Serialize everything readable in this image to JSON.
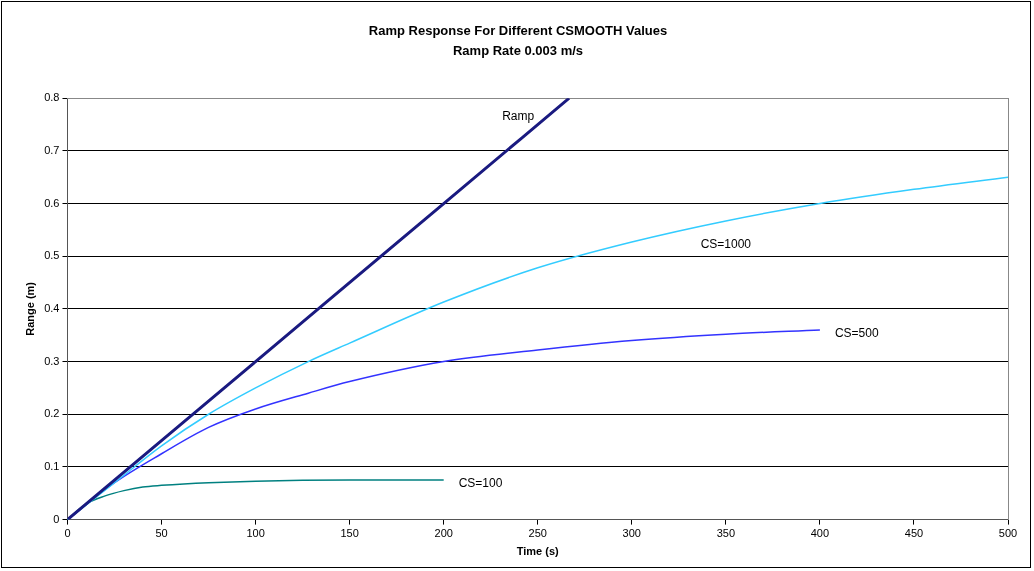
{
  "chart_data": {
    "type": "line",
    "title": "Ramp Response For Different CSMOOTH Values",
    "subtitle": "Ramp Rate 0.003 m/s",
    "xlabel": "Time (s)",
    "ylabel": "Range (m)",
    "xlim": [
      0,
      500
    ],
    "xticks": [
      0,
      50,
      100,
      150,
      200,
      250,
      300,
      350,
      400,
      450,
      500
    ],
    "ylim": [
      0,
      0.8
    ],
    "yticks": [
      0,
      0.1,
      0.2,
      0.3,
      0.4,
      0.5,
      0.6,
      0.7,
      0.8
    ],
    "grid": "y",
    "legend": false,
    "marker": "none",
    "line_style": "solid",
    "series": [
      {
        "name": "Ramp",
        "color": "#1a1a80",
        "x": [
          0,
          100,
          200,
          266.7
        ],
        "values": [
          0,
          0.3,
          0.6,
          0.8
        ]
      },
      {
        "name": "CS=1000",
        "color": "#33ccff",
        "x": [
          0,
          25,
          50,
          75,
          100,
          128,
          150,
          200,
          250,
          300,
          350,
          400,
          450,
          500
        ],
        "values": [
          0,
          0.07,
          0.14,
          0.2,
          0.25,
          0.3,
          0.335,
          0.413,
          0.478,
          0.527,
          0.567,
          0.6,
          0.627,
          0.65
        ]
      },
      {
        "name": "CS=500",
        "color": "#3333ff",
        "x": [
          0,
          25,
          50,
          75,
          100,
          128,
          150,
          200,
          250,
          300,
          350,
          400
        ],
        "values": [
          0,
          0.07,
          0.125,
          0.175,
          0.21,
          0.24,
          0.262,
          0.3,
          0.322,
          0.34,
          0.352,
          0.36
        ]
      },
      {
        "name": "CS=100",
        "color": "#008080",
        "x": [
          0,
          10,
          20,
          30,
          40,
          50,
          75,
          100,
          150,
          200
        ],
        "values": [
          0,
          0.03,
          0.045,
          0.055,
          0.062,
          0.065,
          0.07,
          0.073,
          0.075,
          0.075
        ]
      }
    ]
  }
}
